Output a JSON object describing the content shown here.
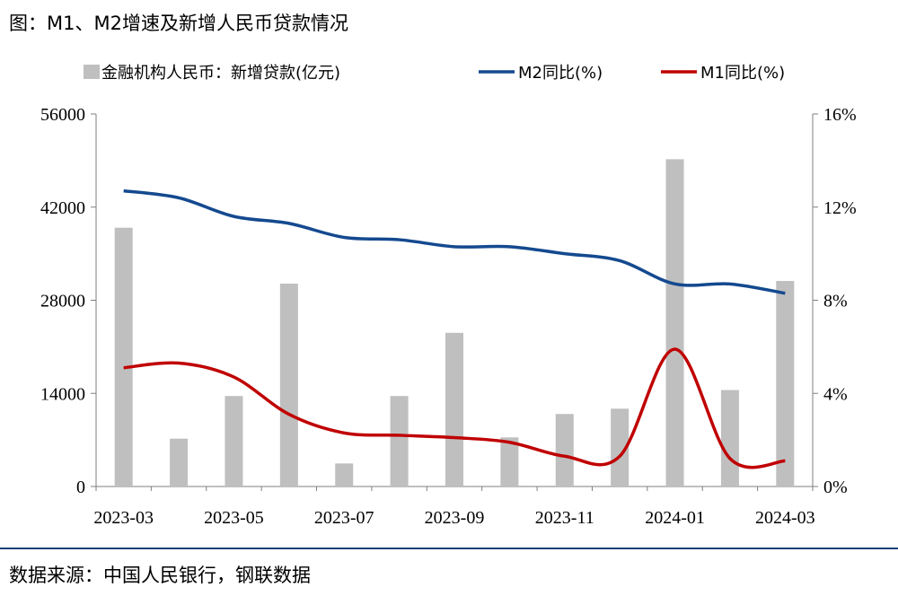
{
  "header": {
    "title": "图：M1、M2增速及新增人民币贷款情况"
  },
  "footer": {
    "source": "数据来源：中国人民银行，钢联数据"
  },
  "colors": {
    "bars": "#bfbfbf",
    "m2": "#14498f",
    "m1": "#c00000",
    "axis": "#7f7f7f",
    "rule": "#1a3f7a"
  },
  "chart_data": {
    "type": "bar+line",
    "x": [
      "2023-03",
      "2023-04",
      "2023-05",
      "2023-06",
      "2023-07",
      "2023-08",
      "2023-09",
      "2023-10",
      "2023-11",
      "2023-12",
      "2024-01",
      "2024-02",
      "2024-03"
    ],
    "x_tick_labels": [
      "2023-03",
      "2023-05",
      "2023-07",
      "2023-09",
      "2023-11",
      "2024-01",
      "2024-03"
    ],
    "series": [
      {
        "name": "金融机构人民币：新增贷款(亿元)",
        "type": "bar",
        "axis": "left",
        "values": [
          38900,
          7188,
          13600,
          30500,
          3459,
          13600,
          23100,
          7384,
          10900,
          11700,
          49200,
          14500,
          30900
        ]
      },
      {
        "name": "M2同比(%)",
        "type": "line",
        "axis": "right",
        "values": [
          12.7,
          12.4,
          11.6,
          11.3,
          10.7,
          10.6,
          10.3,
          10.3,
          10.0,
          9.7,
          8.7,
          8.7,
          8.3
        ]
      },
      {
        "name": "M1同比(%)",
        "type": "line",
        "axis": "right",
        "values": [
          5.1,
          5.3,
          4.7,
          3.1,
          2.3,
          2.2,
          2.1,
          1.9,
          1.3,
          1.3,
          5.9,
          1.2,
          1.1
        ]
      }
    ],
    "left_axis": {
      "ylim": [
        0,
        56000
      ],
      "ticks": [
        "0",
        "14000",
        "28000",
        "42000",
        "56000"
      ]
    },
    "right_axis": {
      "ylim": [
        0,
        16
      ],
      "ticks": [
        "0%",
        "4%",
        "8%",
        "12%",
        "16%"
      ]
    },
    "legend": {
      "placement": "top"
    }
  }
}
